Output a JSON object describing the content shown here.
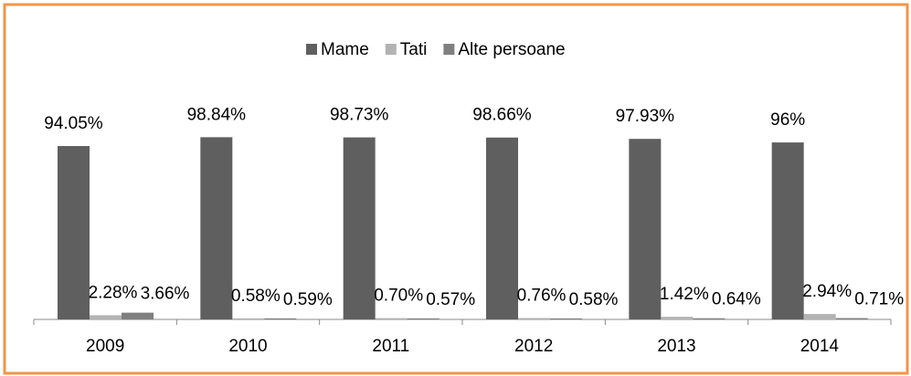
{
  "chart_data": {
    "type": "bar",
    "categories": [
      "2009",
      "2010",
      "2011",
      "2012",
      "2013",
      "2014"
    ],
    "series": [
      {
        "name": "Mame",
        "color": "#5f5f5f",
        "values": [
          94.05,
          98.84,
          98.73,
          98.66,
          97.93,
          96
        ],
        "value_labels": [
          "94.05%",
          "98.84%",
          "98.73%",
          "98.66%",
          "97.93%",
          "96%"
        ]
      },
      {
        "name": "Tati",
        "color": "#b3b3b3",
        "values": [
          2.28,
          0.58,
          0.7,
          0.76,
          1.42,
          2.94
        ],
        "value_labels": [
          "2.28%",
          "0.58%",
          "0.70%",
          "0.76%",
          "1.42%",
          "2.94%"
        ]
      },
      {
        "name": "Alte persoane",
        "color": "#7f7f7f",
        "values": [
          3.66,
          0.59,
          0.57,
          0.58,
          0.64,
          0.71
        ],
        "value_labels": [
          "3.66%",
          "0.59%",
          "0.57%",
          "0.58%",
          "0.64%",
          "0.71%"
        ]
      }
    ],
    "ylim": [
      0,
      100
    ],
    "legend": "top"
  }
}
